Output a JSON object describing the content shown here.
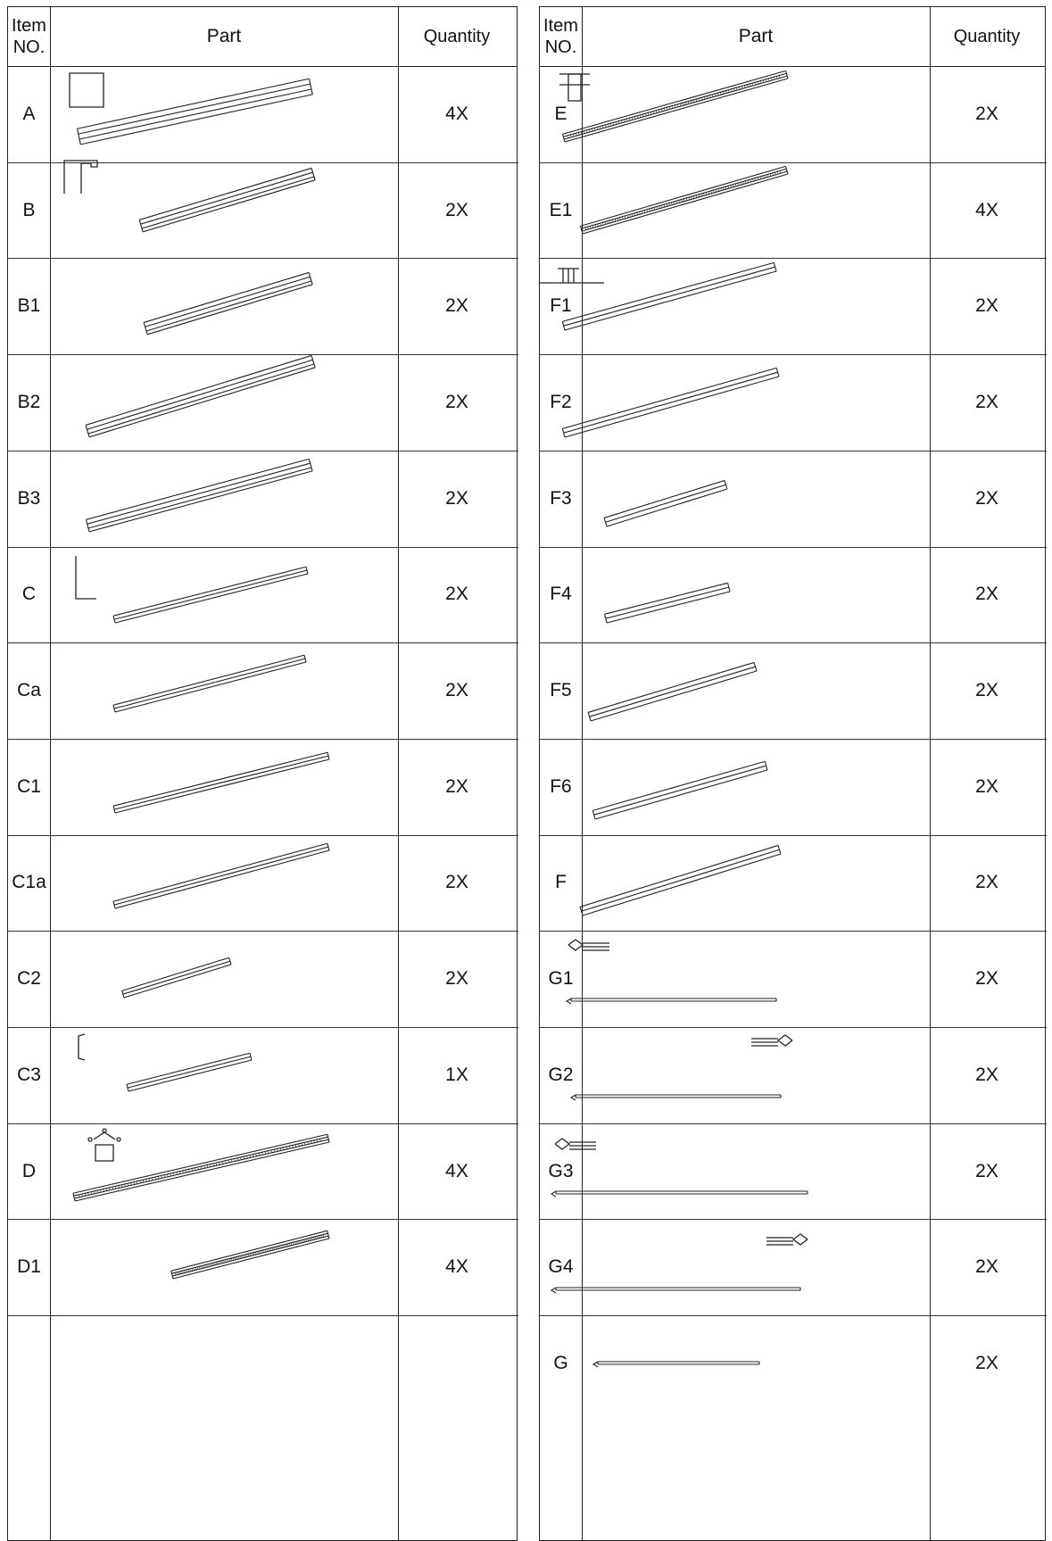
{
  "headers": {
    "item_no": "Item NO.",
    "part": "Part",
    "quantity": "Quantity"
  },
  "left_rows": [
    {
      "code": "A",
      "qty": "4X",
      "shape": "square-tube",
      "profile": "square"
    },
    {
      "code": "B",
      "qty": "2X",
      "shape": "c-channel",
      "profile": "lip"
    },
    {
      "code": "B1",
      "qty": "2X",
      "shape": "c-channel",
      "profile": ""
    },
    {
      "code": "B2",
      "qty": "2X",
      "shape": "c-channel",
      "profile": ""
    },
    {
      "code": "B3",
      "qty": "2X",
      "shape": "c-channel",
      "profile": ""
    },
    {
      "code": "C",
      "qty": "2X",
      "shape": "angle",
      "profile": "angle"
    },
    {
      "code": "Ca",
      "qty": "2X",
      "shape": "angle",
      "profile": ""
    },
    {
      "code": "C1",
      "qty": "2X",
      "shape": "angle",
      "profile": ""
    },
    {
      "code": "C1a",
      "qty": "2X",
      "shape": "angle",
      "profile": ""
    },
    {
      "code": "C2",
      "qty": "2X",
      "shape": "angle",
      "profile": ""
    },
    {
      "code": "C3",
      "qty": "1X",
      "shape": "angle",
      "profile": "bracket"
    },
    {
      "code": "D",
      "qty": "4X",
      "shape": "ridge",
      "profile": "ridge"
    },
    {
      "code": "D1",
      "qty": "4X",
      "shape": "ridge",
      "profile": ""
    },
    {
      "code": "",
      "qty": "",
      "shape": "none",
      "profile": ""
    }
  ],
  "right_rows": [
    {
      "code": "E",
      "qty": "2X",
      "shape": "ridge",
      "profile": "t-section"
    },
    {
      "code": "E1",
      "qty": "4X",
      "shape": "ridge",
      "profile": ""
    },
    {
      "code": "F1",
      "qty": "2X",
      "shape": "flat",
      "profile": "flat-t"
    },
    {
      "code": "F2",
      "qty": "2X",
      "shape": "flat",
      "profile": ""
    },
    {
      "code": "F3",
      "qty": "2X",
      "shape": "flat",
      "profile": ""
    },
    {
      "code": "F4",
      "qty": "2X",
      "shape": "flat",
      "profile": ""
    },
    {
      "code": "F5",
      "qty": "2X",
      "shape": "flat",
      "profile": ""
    },
    {
      "code": "F6",
      "qty": "2X",
      "shape": "flat",
      "profile": ""
    },
    {
      "code": "F",
      "qty": "2X",
      "shape": "flat",
      "profile": ""
    },
    {
      "code": "G1",
      "qty": "2X",
      "shape": "rail",
      "profile": "clip-left"
    },
    {
      "code": "G2",
      "qty": "2X",
      "shape": "rail",
      "profile": "clip-right"
    },
    {
      "code": "G3",
      "qty": "2X",
      "shape": "rail",
      "profile": "clip-left"
    },
    {
      "code": "G4",
      "qty": "2X",
      "shape": "rail",
      "profile": "clip-right"
    },
    {
      "code": "G",
      "qty": "2X",
      "shape": "rail",
      "profile": ""
    }
  ]
}
